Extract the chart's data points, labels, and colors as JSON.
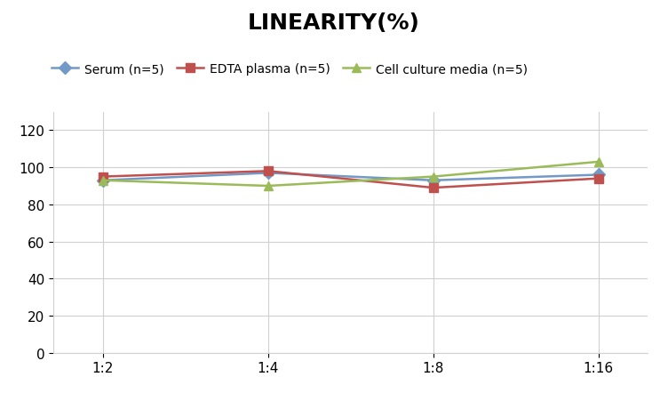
{
  "title": "LINEARITY(%)",
  "x_labels": [
    "1:2",
    "1:4",
    "1:8",
    "1:16"
  ],
  "series": [
    {
      "label": "Serum (n=5)",
      "values": [
        93,
        97,
        93,
        96
      ],
      "color": "#7399C6",
      "marker": "D",
      "marker_color": "#7399C6"
    },
    {
      "label": "EDTA plasma (n=5)",
      "values": [
        95,
        98,
        89,
        94
      ],
      "color": "#C0504D",
      "marker": "s",
      "marker_color": "#C0504D"
    },
    {
      "label": "Cell culture media (n=5)",
      "values": [
        93,
        90,
        95,
        103
      ],
      "color": "#9BBB59",
      "marker": "^",
      "marker_color": "#9BBB59"
    }
  ],
  "ylim": [
    0,
    130
  ],
  "yticks": [
    0,
    20,
    40,
    60,
    80,
    100,
    120
  ],
  "background_color": "#ffffff",
  "title_fontsize": 18,
  "legend_fontsize": 10,
  "tick_fontsize": 11,
  "grid_color": "#d0d0d0",
  "line_width": 1.8,
  "marker_size": 7
}
